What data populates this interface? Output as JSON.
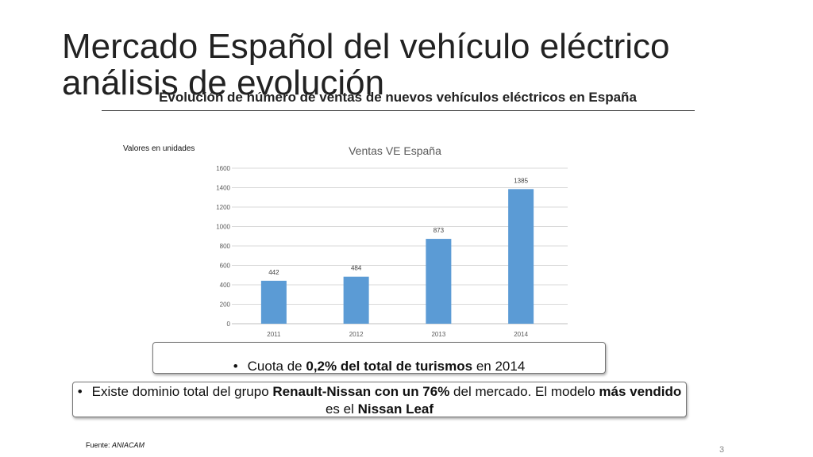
{
  "slide": {
    "title_line1": "Mercado Español del vehículo eléctrico",
    "title_line2": "análisis de evolución",
    "subtitle": "Evolución de número de ventas de nuevos vehículos eléctricos en España",
    "units_note": "Valores en unidades",
    "box1": {
      "bullet": "•",
      "text_before": "Cuota de ",
      "text_bold": "0,2% del total de turismos",
      "text_after": " en 2014"
    },
    "box2": {
      "bullet": "•",
      "t1": "Existe dominio total del grupo ",
      "b1": "Renault-Nissan con un 76%",
      "t2": " del mercado. El modelo ",
      "b2": "más vendido",
      "t3": " es el ",
      "b3": "Nissan Leaf"
    },
    "source_label": "Fuente: ",
    "source_value": "ANIACAM",
    "page_number": "3"
  },
  "chart_data": {
    "type": "bar",
    "title": "Ventas VE España",
    "categories": [
      "2011",
      "2012",
      "2013",
      "2014"
    ],
    "values": [
      442,
      484,
      873,
      1385
    ],
    "yticks": [
      0,
      200,
      400,
      600,
      800,
      1000,
      1200,
      1400,
      1600
    ],
    "ylim": [
      0,
      1600
    ],
    "grid": true,
    "data_labels": true,
    "bar_color": "#5b9bd5",
    "grid_color": "#d9d9d9",
    "title_color": "#595959",
    "tick_color": "#595959"
  }
}
